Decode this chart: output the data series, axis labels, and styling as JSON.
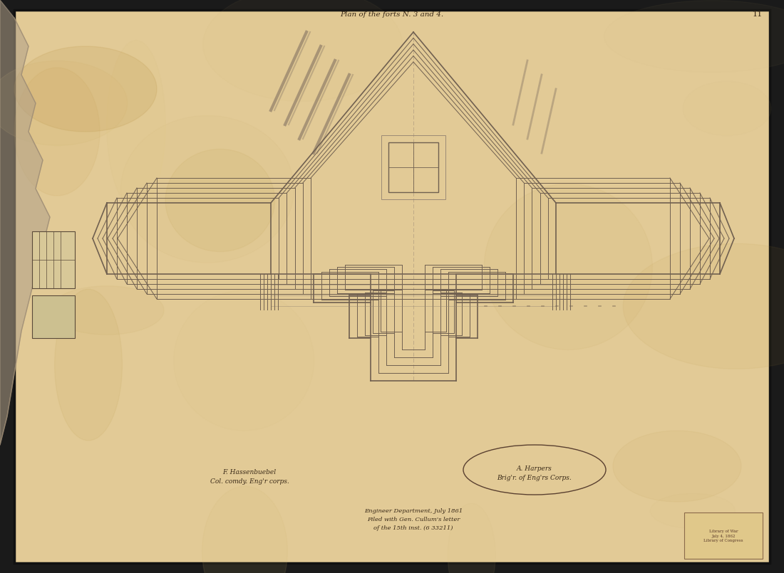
{
  "paper_color": "#e8d5a8",
  "paper_color2": "#d4bc88",
  "border_color": "#1a1a1a",
  "draw_color": "#706050",
  "draw_color_light": "#908070",
  "shade_color": "#8a7a6a",
  "title_text": "Plan of the forts N. 3 and 4.",
  "page_num": "11",
  "sig1_text": "F. Hassenbuebel\nCol. comdy. Eng'r corps.",
  "sig2_text": "A. Harpers\nBrig'r. of Eng'rs Corps.",
  "bottom_text": "Engineer Department, July 1861\nFiled with Gen. Cullum's letter\nof the 15th inst. (6 33211)",
  "stamp_text": "Library of War\nJuly 4, 1862\nLibrary of Congress"
}
